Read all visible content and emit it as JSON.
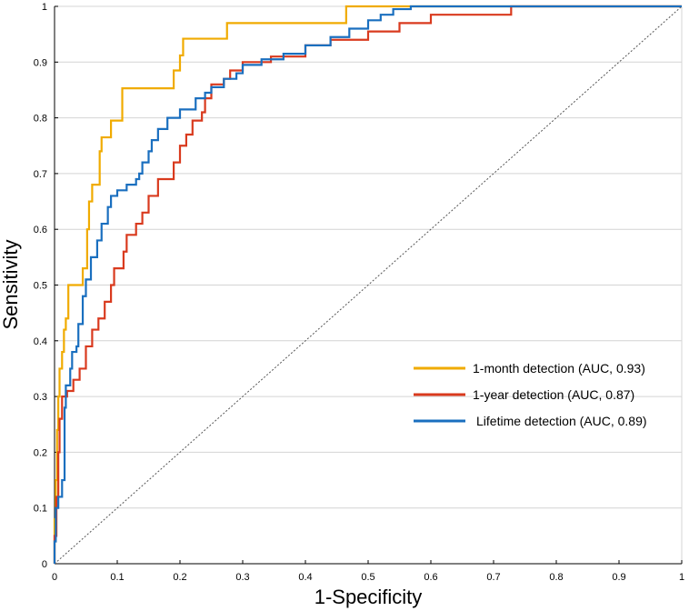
{
  "chart_data": {
    "type": "line",
    "title": "",
    "xlabel": "1-Specificity",
    "ylabel": "Sensitivity",
    "xlim": [
      0,
      1
    ],
    "ylim": [
      0,
      1
    ],
    "grid": "horizontal",
    "legend_position": "center-right",
    "xticks": [
      0,
      0.1,
      0.2,
      0.3,
      0.4,
      0.5,
      0.6,
      0.7,
      0.8,
      0.9,
      1
    ],
    "xtick_labels": [
      "0",
      "0.1",
      "0.2",
      "0.3",
      "0.4",
      "0.5",
      "0.6",
      "0.7",
      "0.8",
      "0.9",
      "1"
    ],
    "yticks": [
      0,
      0.1,
      0.2,
      0.3,
      0.4,
      0.5,
      0.6,
      0.7,
      0.8,
      0.9,
      1
    ],
    "ytick_labels": [
      "0",
      "0.1",
      "0.2",
      "0.3",
      "0.4",
      "0.5",
      "0.6",
      "0.7",
      "0.8",
      "0.9",
      "1"
    ],
    "reference_line": {
      "name": "chance",
      "points": [
        [
          0,
          0
        ],
        [
          1,
          1
        ]
      ],
      "style": "dotted"
    },
    "series": [
      {
        "name": "1-month detection (AUC, 0.93)",
        "color": "#f0ab00",
        "points": [
          [
            0,
            0
          ],
          [
            0,
            0.08
          ],
          [
            0.002,
            0.08
          ],
          [
            0.002,
            0.15
          ],
          [
            0.004,
            0.15
          ],
          [
            0.004,
            0.24
          ],
          [
            0.006,
            0.24
          ],
          [
            0.006,
            0.3
          ],
          [
            0.008,
            0.3
          ],
          [
            0.008,
            0.35
          ],
          [
            0.012,
            0.35
          ],
          [
            0.012,
            0.38
          ],
          [
            0.015,
            0.38
          ],
          [
            0.015,
            0.42
          ],
          [
            0.018,
            0.42
          ],
          [
            0.018,
            0.44
          ],
          [
            0.022,
            0.44
          ],
          [
            0.022,
            0.5
          ],
          [
            0.045,
            0.5
          ],
          [
            0.045,
            0.53
          ],
          [
            0.052,
            0.53
          ],
          [
            0.052,
            0.6
          ],
          [
            0.055,
            0.6
          ],
          [
            0.055,
            0.65
          ],
          [
            0.06,
            0.65
          ],
          [
            0.06,
            0.68
          ],
          [
            0.072,
            0.68
          ],
          [
            0.072,
            0.74
          ],
          [
            0.075,
            0.74
          ],
          [
            0.075,
            0.765
          ],
          [
            0.09,
            0.765
          ],
          [
            0.09,
            0.795
          ],
          [
            0.108,
            0.795
          ],
          [
            0.108,
            0.853
          ],
          [
            0.19,
            0.853
          ],
          [
            0.19,
            0.885
          ],
          [
            0.2,
            0.885
          ],
          [
            0.2,
            0.912
          ],
          [
            0.205,
            0.912
          ],
          [
            0.205,
            0.942
          ],
          [
            0.275,
            0.942
          ],
          [
            0.275,
            0.97
          ],
          [
            0.465,
            0.97
          ],
          [
            0.465,
            1
          ],
          [
            1,
            1
          ]
        ]
      },
      {
        "name": "1-year detection (AUC, 0.87)",
        "color": "#d93a1e",
        "points": [
          [
            0,
            0
          ],
          [
            0,
            0.05
          ],
          [
            0.003,
            0.05
          ],
          [
            0.003,
            0.12
          ],
          [
            0.006,
            0.12
          ],
          [
            0.006,
            0.2
          ],
          [
            0.008,
            0.2
          ],
          [
            0.008,
            0.26
          ],
          [
            0.012,
            0.26
          ],
          [
            0.012,
            0.3
          ],
          [
            0.02,
            0.3
          ],
          [
            0.02,
            0.31
          ],
          [
            0.03,
            0.31
          ],
          [
            0.03,
            0.33
          ],
          [
            0.04,
            0.33
          ],
          [
            0.04,
            0.35
          ],
          [
            0.05,
            0.35
          ],
          [
            0.05,
            0.39
          ],
          [
            0.06,
            0.39
          ],
          [
            0.06,
            0.42
          ],
          [
            0.07,
            0.42
          ],
          [
            0.07,
            0.44
          ],
          [
            0.08,
            0.44
          ],
          [
            0.08,
            0.47
          ],
          [
            0.09,
            0.47
          ],
          [
            0.09,
            0.5
          ],
          [
            0.095,
            0.5
          ],
          [
            0.095,
            0.53
          ],
          [
            0.11,
            0.53
          ],
          [
            0.11,
            0.56
          ],
          [
            0.115,
            0.56
          ],
          [
            0.115,
            0.59
          ],
          [
            0.13,
            0.59
          ],
          [
            0.13,
            0.61
          ],
          [
            0.14,
            0.61
          ],
          [
            0.14,
            0.63
          ],
          [
            0.15,
            0.63
          ],
          [
            0.15,
            0.66
          ],
          [
            0.165,
            0.66
          ],
          [
            0.165,
            0.69
          ],
          [
            0.19,
            0.69
          ],
          [
            0.19,
            0.72
          ],
          [
            0.2,
            0.72
          ],
          [
            0.2,
            0.75
          ],
          [
            0.21,
            0.75
          ],
          [
            0.21,
            0.77
          ],
          [
            0.22,
            0.77
          ],
          [
            0.22,
            0.795
          ],
          [
            0.235,
            0.795
          ],
          [
            0.235,
            0.81
          ],
          [
            0.24,
            0.81
          ],
          [
            0.24,
            0.835
          ],
          [
            0.25,
            0.835
          ],
          [
            0.25,
            0.86
          ],
          [
            0.27,
            0.86
          ],
          [
            0.27,
            0.87
          ],
          [
            0.28,
            0.87
          ],
          [
            0.28,
            0.885
          ],
          [
            0.3,
            0.885
          ],
          [
            0.3,
            0.9
          ],
          [
            0.345,
            0.9
          ],
          [
            0.345,
            0.91
          ],
          [
            0.4,
            0.91
          ],
          [
            0.4,
            0.93
          ],
          [
            0.44,
            0.93
          ],
          [
            0.44,
            0.94
          ],
          [
            0.5,
            0.94
          ],
          [
            0.5,
            0.955
          ],
          [
            0.55,
            0.955
          ],
          [
            0.55,
            0.97
          ],
          [
            0.6,
            0.97
          ],
          [
            0.6,
            0.985
          ],
          [
            0.728,
            0.985
          ],
          [
            0.728,
            1
          ],
          [
            1,
            1
          ]
        ]
      },
      {
        "name": "Lifetime detection (AUC, 0.89)",
        "color": "#1a6fbf",
        "points": [
          [
            0,
            0
          ],
          [
            0,
            0.04
          ],
          [
            0.002,
            0.04
          ],
          [
            0.002,
            0.1
          ],
          [
            0.006,
            0.1
          ],
          [
            0.006,
            0.12
          ],
          [
            0.012,
            0.12
          ],
          [
            0.012,
            0.15
          ],
          [
            0.016,
            0.15
          ],
          [
            0.016,
            0.28
          ],
          [
            0.018,
            0.28
          ],
          [
            0.018,
            0.32
          ],
          [
            0.025,
            0.32
          ],
          [
            0.025,
            0.35
          ],
          [
            0.028,
            0.35
          ],
          [
            0.028,
            0.38
          ],
          [
            0.035,
            0.38
          ],
          [
            0.035,
            0.39
          ],
          [
            0.038,
            0.39
          ],
          [
            0.038,
            0.43
          ],
          [
            0.045,
            0.43
          ],
          [
            0.045,
            0.48
          ],
          [
            0.05,
            0.48
          ],
          [
            0.05,
            0.51
          ],
          [
            0.058,
            0.51
          ],
          [
            0.058,
            0.55
          ],
          [
            0.068,
            0.55
          ],
          [
            0.068,
            0.58
          ],
          [
            0.075,
            0.58
          ],
          [
            0.075,
            0.61
          ],
          [
            0.085,
            0.61
          ],
          [
            0.085,
            0.64
          ],
          [
            0.09,
            0.64
          ],
          [
            0.09,
            0.66
          ],
          [
            0.1,
            0.66
          ],
          [
            0.1,
            0.67
          ],
          [
            0.115,
            0.67
          ],
          [
            0.115,
            0.68
          ],
          [
            0.13,
            0.68
          ],
          [
            0.13,
            0.69
          ],
          [
            0.135,
            0.69
          ],
          [
            0.135,
            0.7
          ],
          [
            0.14,
            0.7
          ],
          [
            0.14,
            0.72
          ],
          [
            0.15,
            0.72
          ],
          [
            0.15,
            0.74
          ],
          [
            0.155,
            0.74
          ],
          [
            0.155,
            0.76
          ],
          [
            0.165,
            0.76
          ],
          [
            0.165,
            0.78
          ],
          [
            0.18,
            0.78
          ],
          [
            0.18,
            0.8
          ],
          [
            0.2,
            0.8
          ],
          [
            0.2,
            0.815
          ],
          [
            0.225,
            0.815
          ],
          [
            0.225,
            0.835
          ],
          [
            0.24,
            0.835
          ],
          [
            0.24,
            0.845
          ],
          [
            0.25,
            0.845
          ],
          [
            0.25,
            0.855
          ],
          [
            0.27,
            0.855
          ],
          [
            0.27,
            0.87
          ],
          [
            0.29,
            0.87
          ],
          [
            0.29,
            0.88
          ],
          [
            0.3,
            0.88
          ],
          [
            0.3,
            0.895
          ],
          [
            0.33,
            0.895
          ],
          [
            0.33,
            0.905
          ],
          [
            0.365,
            0.905
          ],
          [
            0.365,
            0.915
          ],
          [
            0.4,
            0.915
          ],
          [
            0.4,
            0.93
          ],
          [
            0.44,
            0.93
          ],
          [
            0.44,
            0.945
          ],
          [
            0.47,
            0.945
          ],
          [
            0.47,
            0.96
          ],
          [
            0.5,
            0.96
          ],
          [
            0.5,
            0.975
          ],
          [
            0.52,
            0.975
          ],
          [
            0.52,
            0.985
          ],
          [
            0.54,
            0.985
          ],
          [
            0.54,
            0.995
          ],
          [
            0.568,
            0.995
          ],
          [
            0.568,
            1
          ],
          [
            1,
            1
          ]
        ]
      }
    ]
  }
}
